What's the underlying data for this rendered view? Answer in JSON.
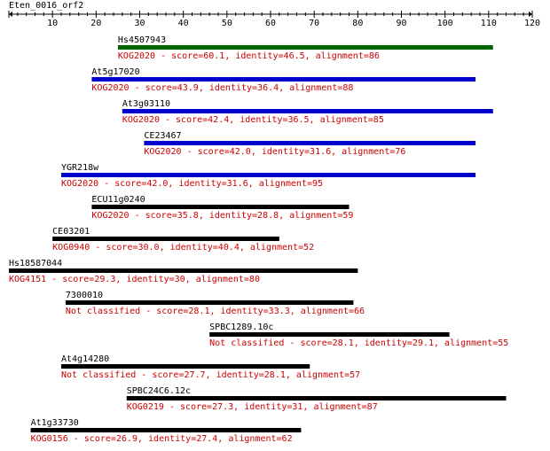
{
  "query": {
    "name": "Eten_0016_orf2",
    "axis_min": 0,
    "axis_max": 120,
    "tick_labels": [
      "10",
      "20",
      "30",
      "40",
      "50",
      "60",
      "70",
      "80",
      "90",
      "100",
      "110",
      "120"
    ]
  },
  "colors": {
    "axis": "#000000",
    "score_text": "#cc0000",
    "name_text": "#000000",
    "bar_green": "#006600",
    "bar_blue": "#0000cc",
    "bar_black": "#000000"
  },
  "hits": [
    {
      "name": "Hs4507943",
      "start": 25,
      "end": 111,
      "color": "bar_green",
      "description": "KOG2020 - score=60.1, identity=46.5, alignment=86"
    },
    {
      "name": "At5g17020",
      "start": 19,
      "end": 107,
      "color": "bar_blue",
      "description": "KOG2020 - score=43.9, identity=36.4, alignment=88"
    },
    {
      "name": "At3g03110",
      "start": 26,
      "end": 111,
      "color": "bar_blue",
      "description": "KOG2020 - score=42.4, identity=36.5, alignment=85"
    },
    {
      "name": "CE23467",
      "start": 31,
      "end": 107,
      "color": "bar_blue",
      "description": "KOG2020 - score=42.0, identity=31.6, alignment=76"
    },
    {
      "name": "YGR218w",
      "start": 12,
      "end": 107,
      "color": "bar_blue",
      "description": "KOG2020 - score=42.0, identity=31.6, alignment=95"
    },
    {
      "name": "ECU11g0240",
      "start": 19,
      "end": 78,
      "color": "bar_black",
      "description": "KOG2020 - score=35.8, identity=28.8, alignment=59"
    },
    {
      "name": "CE03201",
      "start": 10,
      "end": 62,
      "color": "bar_black",
      "description": "KOG0940 - score=30.0, identity=40.4, alignment=52"
    },
    {
      "name": "Hs18587044",
      "start": 0,
      "end": 80,
      "color": "bar_black",
      "description": "KOG4151 - score=29.3, identity=30, alignment=80"
    },
    {
      "name": "7300010",
      "start": 13,
      "end": 79,
      "color": "bar_black",
      "description": "Not classified - score=28.1, identity=33.3, alignment=66"
    },
    {
      "name": "SPBC1289.10c",
      "start": 46,
      "end": 101,
      "color": "bar_black",
      "description": "Not classified - score=28.1, identity=29.1, alignment=55"
    },
    {
      "name": "At4g14280",
      "start": 12,
      "end": 69,
      "color": "bar_black",
      "description": "Not classified - score=27.7, identity=28.1, alignment=57"
    },
    {
      "name": "SPBC24C6.12c",
      "start": 27,
      "end": 114,
      "color": "bar_black",
      "description": "KOG0219 - score=27.3, identity=31, alignment=87"
    },
    {
      "name": "At1g33730",
      "start": 5,
      "end": 67,
      "color": "bar_black",
      "description": "KOG0156 - score=26.9, identity=27.4, alignment=62"
    }
  ]
}
